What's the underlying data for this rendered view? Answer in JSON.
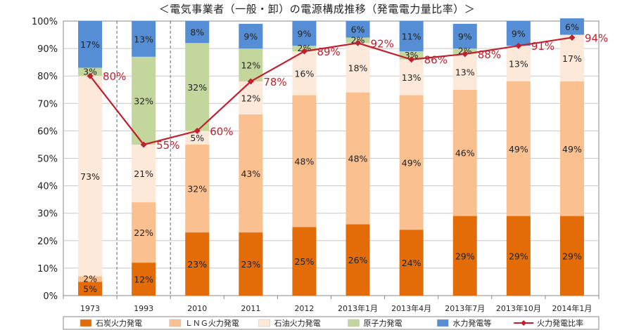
{
  "chart_data": {
    "type": "bar",
    "stacked": true,
    "title": "＜電気事業者（一般・卸）の電源構成推移（発電電力量比率）＞",
    "categories": [
      "1973",
      "1993",
      "2010",
      "2011",
      "2012",
      "2013年1月",
      "2013年4月",
      "2013年7月",
      "2013年10月",
      "2014年1月"
    ],
    "ylim": [
      0,
      100
    ],
    "yticks": [
      "0%",
      "10%",
      "20%",
      "30%",
      "40%",
      "50%",
      "60%",
      "70%",
      "80%",
      "90%",
      "100%"
    ],
    "grid": true,
    "legend_position": "bottom",
    "separators_after": [
      0,
      1
    ],
    "series": [
      {
        "name": "石炭火力発電",
        "color": "#e36c09",
        "values": [
          5,
          12,
          23,
          23,
          25,
          26,
          24,
          29,
          29,
          29
        ],
        "labels": [
          "5%",
          "12%",
          "23%",
          "23%",
          "25%",
          "26%",
          "24%",
          "29%",
          "29%",
          "29%"
        ]
      },
      {
        "name": "ＬＮＧ火力発電",
        "color": "#fac090",
        "values": [
          2,
          22,
          32,
          43,
          48,
          48,
          49,
          46,
          49,
          49
        ],
        "labels": [
          "2%",
          "22%",
          "32%",
          "43%",
          "48%",
          "48%",
          "49%",
          "46%",
          "49%",
          "49%"
        ]
      },
      {
        "name": "石油火力発電",
        "color": "#fde9d9",
        "values": [
          73,
          21,
          5,
          12,
          16,
          18,
          13,
          13,
          13,
          17
        ],
        "labels": [
          "73%",
          "21%",
          "5%",
          "12%",
          "16%",
          "18%",
          "13%",
          "13%",
          "13%",
          "17%"
        ]
      },
      {
        "name": "原子力発電",
        "color": "#c3d69b",
        "values": [
          3,
          32,
          32,
          12,
          2,
          2,
          3,
          2,
          0,
          0
        ],
        "labels": [
          "3%",
          "32%",
          "32%",
          "12%",
          "2%",
          "2%",
          "3%",
          "2%",
          "",
          ""
        ]
      },
      {
        "name": "水力発電等",
        "color": "#558ed5",
        "values": [
          17,
          13,
          8,
          9,
          9,
          6,
          11,
          9,
          9,
          6
        ],
        "labels": [
          "17%",
          "13%",
          "8%",
          "9%",
          "9%",
          "6%",
          "11%",
          "9%",
          "9%",
          "6%"
        ]
      }
    ],
    "line_series": {
      "name": "火力発電比率",
      "color": "#c0202e",
      "values": [
        80,
        55,
        60,
        78,
        89,
        92,
        86,
        88,
        91,
        94
      ],
      "labels": [
        "80%",
        "55%",
        "60%",
        "78%",
        "89%",
        "92%",
        "86%",
        "88%",
        "91%",
        "94%"
      ]
    }
  }
}
